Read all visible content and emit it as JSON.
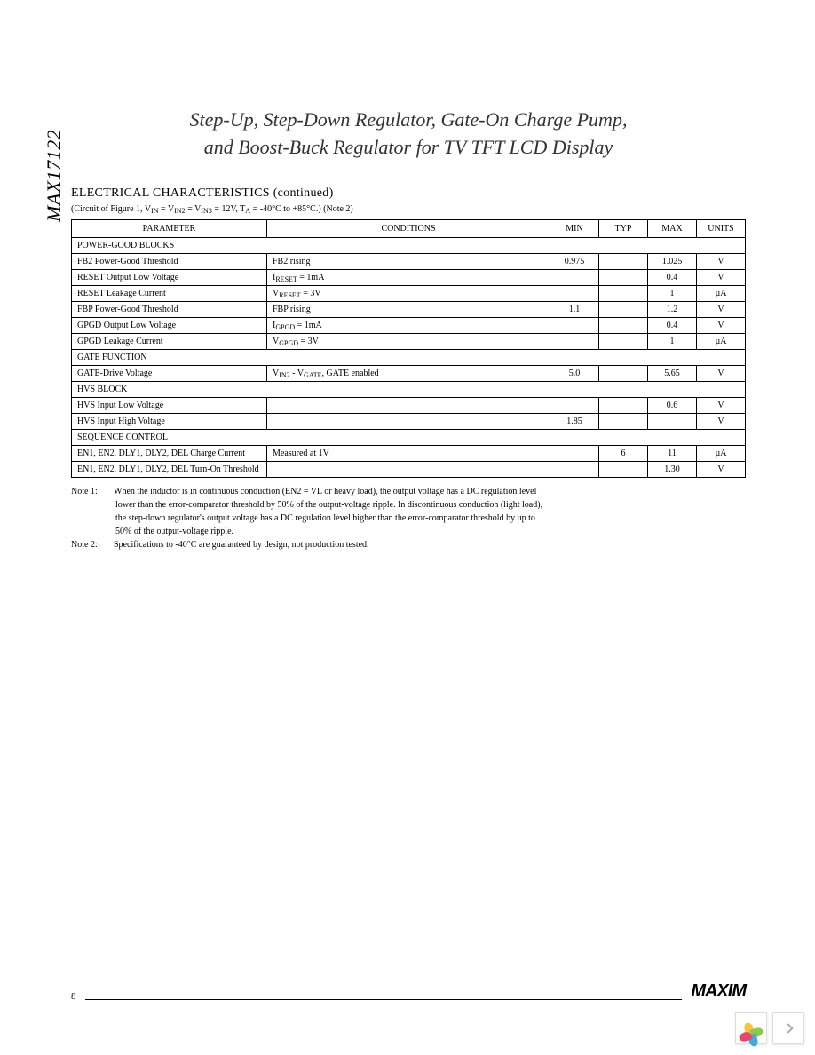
{
  "side_label": "MAX17122",
  "title_line1": "Step-Up, Step-Down Regulator, Gate-On Charge Pump,",
  "title_line2": "and Boost-Buck Regulator for TV TFT LCD Display",
  "section_heading": "ELECTRICAL CHARACTERISTICS (continued)",
  "circuit_note_prefix": "(Circuit of Figure 1, V",
  "circuit_note_mid1": " = V",
  "circuit_note_mid2": " = V",
  "circuit_note_mid3": " = 12V, T",
  "circuit_note_suffix": " = -40°C to +85°C.) (Note 2)",
  "circuit_sub1": "IN",
  "circuit_sub2": "IN2",
  "circuit_sub3": "IN3",
  "circuit_sub4": "A",
  "headers": {
    "parameter": "PARAMETER",
    "conditions": "CONDITIONS",
    "min": "MIN",
    "typ": "TYP",
    "max": "MAX",
    "units": "UNITS"
  },
  "sections": [
    {
      "name": "POWER-GOOD BLOCKS",
      "rows": [
        {
          "param": "FB2 Power-Good Threshold",
          "cond": "FB2 rising",
          "min": "0.975",
          "typ": "",
          "max": "1.025",
          "units": "V"
        },
        {
          "param": "RESET Output Low Voltage",
          "cond": "I_RESET = 1mA",
          "min": "",
          "typ": "",
          "max": "0.4",
          "units": "V"
        },
        {
          "param": "RESET Leakage Current",
          "cond": "V_RESET = 3V",
          "min": "",
          "typ": "",
          "max": "1",
          "units": "µA"
        },
        {
          "param": "FBP Power-Good Threshold",
          "cond": "FBP rising",
          "min": "1.1",
          "typ": "",
          "max": "1.2",
          "units": "V"
        },
        {
          "param": "GPGD Output Low Voltage",
          "cond": "I_GPGD = 1mA",
          "min": "",
          "typ": "",
          "max": "0.4",
          "units": "V"
        },
        {
          "param": "GPGD Leakage Current",
          "cond": "V_GPGD = 3V",
          "min": "",
          "typ": "",
          "max": "1",
          "units": "µA"
        }
      ]
    },
    {
      "name": "GATE FUNCTION",
      "rows": [
        {
          "param": "GATE-Drive Voltage",
          "cond": "V_IN2 - V_GATE, GATE enabled",
          "min": "5.0",
          "typ": "",
          "max": "5.65",
          "units": "V"
        }
      ]
    },
    {
      "name": "HVS BLOCK",
      "rows": [
        {
          "param": "HVS Input Low Voltage",
          "cond": "",
          "min": "",
          "typ": "",
          "max": "0.6",
          "units": "V"
        },
        {
          "param": "HVS Input High Voltage",
          "cond": "",
          "min": "1.85",
          "typ": "",
          "max": "",
          "units": "V"
        }
      ]
    },
    {
      "name": "SEQUENCE CONTROL",
      "rows": [
        {
          "param": "EN1, EN2, DLY1, DLY2, DEL Charge Current",
          "cond": "Measured at 1V",
          "min": "",
          "typ": "6",
          "max": "11",
          "units": "µA"
        },
        {
          "param": "EN1, EN2, DLY1, DLY2, DEL Turn-On Threshold",
          "cond": "",
          "min": "",
          "typ": "",
          "max": "1.30",
          "units": "V"
        }
      ]
    }
  ],
  "note1_label": "Note 1:",
  "note1_line1": "When the inductor is in continuous conduction (EN2 = VL or heavy load), the output voltage has a DC regulation level",
  "note1_line2": "lower than the error-comparator threshold by 50% of the output-voltage ripple. In discontinuous conduction (light load),",
  "note1_line3": "the step-down regulator's output voltage has a DC regulation level higher than the error-comparator threshold by up to",
  "note1_line4": "50% of the output-voltage ripple.",
  "note2_label": "Note 2:",
  "note2_text": "Specifications to -40°C are guaranteed by design, not production tested.",
  "page_number": "8",
  "logo_text": "MAXIM",
  "petal_colors": [
    "#f6c244",
    "#8fc94a",
    "#4aa8d8",
    "#e24a6b"
  ]
}
